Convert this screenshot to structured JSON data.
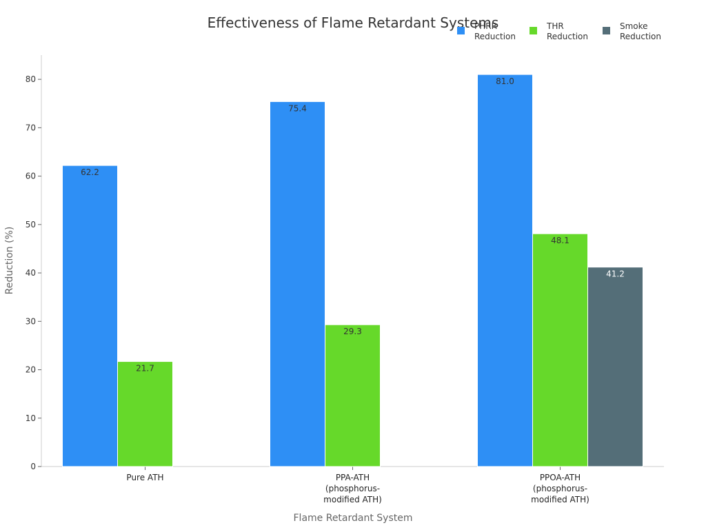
{
  "chart_data": {
    "type": "bar",
    "title": "Effectiveness of Flame Retardant Systems",
    "xlabel": "Flame Retardant System",
    "ylabel": "Reduction (%)",
    "ylim": [
      0,
      85
    ],
    "yticks": [
      0,
      10,
      20,
      30,
      40,
      50,
      60,
      70,
      80
    ],
    "categories": [
      [
        "Pure ATH"
      ],
      [
        "PPA-ATH",
        "(phosphorus-",
        "modified ATH)"
      ],
      [
        "PPOA-ATH",
        "(phosphorus-",
        "modified ATH)"
      ]
    ],
    "series": [
      {
        "name_lines": [
          "PHRR",
          "Reduction"
        ],
        "color": "#2e8ff5",
        "label_color": "#333333",
        "values": [
          62.2,
          75.4,
          81.0
        ],
        "labels": [
          "62.2",
          "75.4",
          "81.0"
        ]
      },
      {
        "name_lines": [
          "THR",
          "Reduction"
        ],
        "color": "#66d92a",
        "label_color": "#333333",
        "values": [
          21.7,
          29.3,
          48.1
        ],
        "labels": [
          "21.7",
          "29.3",
          "48.1"
        ]
      },
      {
        "name_lines": [
          "Smoke",
          "Reduction"
        ],
        "color": "#546e78",
        "label_color": "#ffffff",
        "values": [
          null,
          null,
          41.2
        ],
        "labels": [
          "",
          "",
          "41.2"
        ]
      }
    ],
    "grid": false,
    "legend_position": "top-right",
    "axis_color": "#cccccc"
  }
}
